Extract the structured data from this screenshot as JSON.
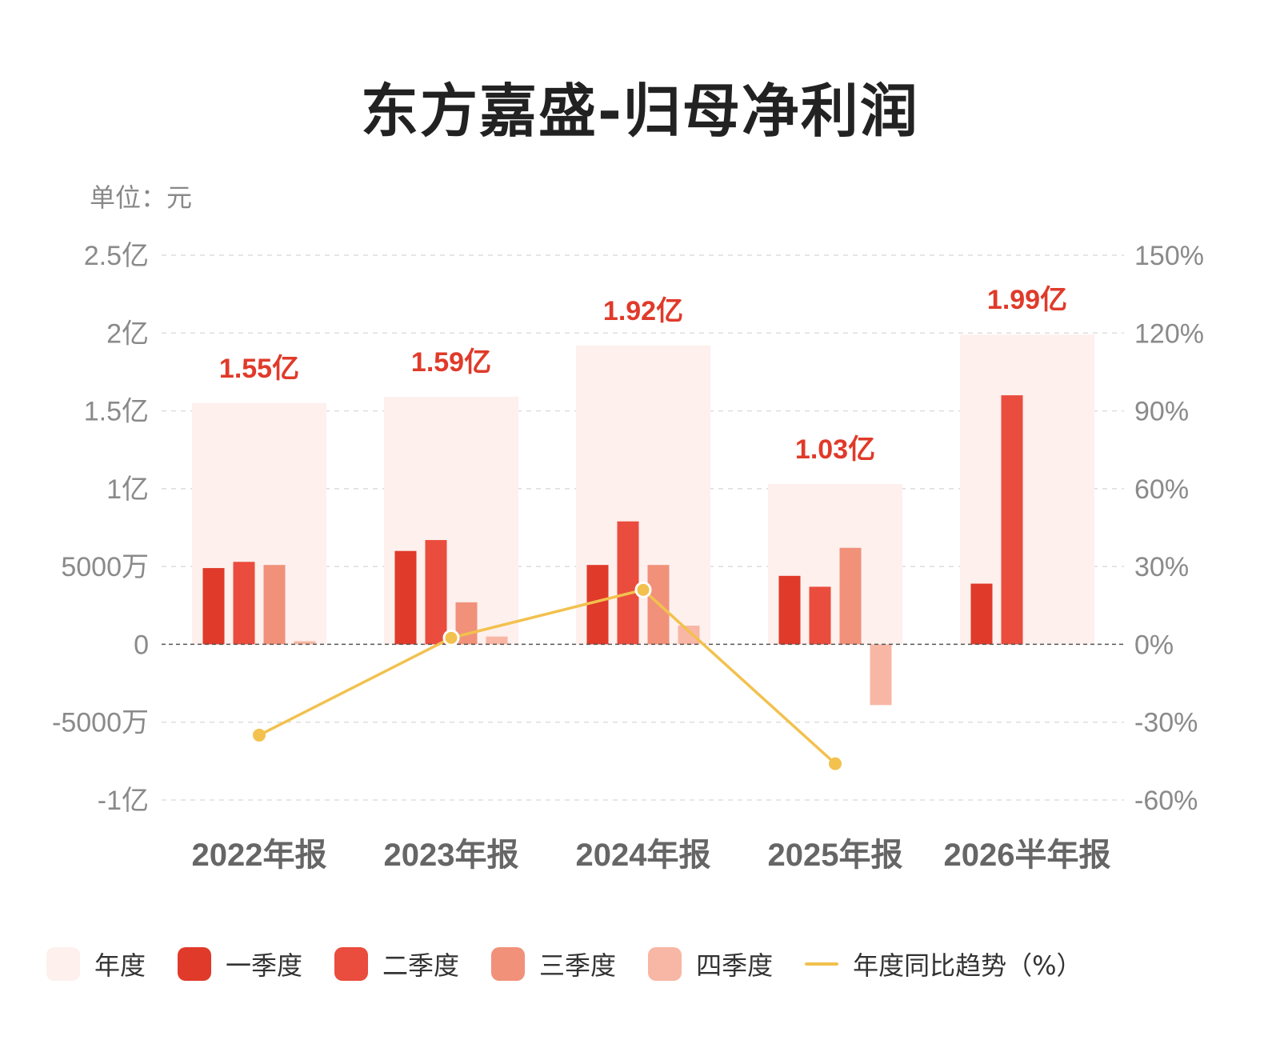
{
  "title": "东方嘉盛-归母净利润",
  "unit_label": "单位：元",
  "colors": {
    "annual": "#fdf0ed",
    "q1": "#e03a2a",
    "q2": "#ea4c3d",
    "q3": "#f1917a",
    "q4": "#f8b6a4",
    "trend": "#f2c14e",
    "total_label": "#e03a2a"
  },
  "legend": [
    {
      "key": "annual",
      "label": "年度",
      "kind": "box"
    },
    {
      "key": "q1",
      "label": "一季度",
      "kind": "box"
    },
    {
      "key": "q2",
      "label": "二季度",
      "kind": "box"
    },
    {
      "key": "q3",
      "label": "三季度",
      "kind": "box"
    },
    {
      "key": "q4",
      "label": "四季度",
      "kind": "box"
    },
    {
      "key": "trend",
      "label": "年度同比趋势（%）",
      "kind": "line"
    }
  ],
  "chart_data": {
    "type": "bar",
    "categories": [
      "2022年报",
      "2023年报",
      "2024年报",
      "2025年报",
      "2026半年报"
    ],
    "annual": [
      155000000,
      159000000,
      192000000,
      103000000,
      199000000
    ],
    "annual_labels": [
      "1.55亿",
      "1.59亿",
      "1.92亿",
      "1.03亿",
      "1.99亿"
    ],
    "series": [
      {
        "key": "q1",
        "name": "一季度",
        "values": [
          49000000,
          60000000,
          51000000,
          44000000,
          39000000
        ]
      },
      {
        "key": "q2",
        "name": "二季度",
        "values": [
          53000000,
          67000000,
          79000000,
          37000000,
          160000000
        ]
      },
      {
        "key": "q3",
        "name": "三季度",
        "values": [
          51000000,
          27000000,
          51000000,
          62000000,
          null
        ]
      },
      {
        "key": "q4",
        "name": "四季度",
        "values": [
          2000000,
          5000000,
          12000000,
          -39000000,
          null
        ]
      }
    ],
    "yoy": {
      "name": "年度同比趋势（%）",
      "values": [
        -35,
        2.5,
        21,
        -46,
        null
      ]
    },
    "y_left": {
      "min": -100000000,
      "max": 250000000,
      "ticks": [
        250000000,
        200000000,
        150000000,
        100000000,
        50000000,
        0,
        -50000000,
        -100000000
      ],
      "tick_labels": [
        "2.5亿",
        "2亿",
        "1.5亿",
        "1亿",
        "5000万",
        "0",
        "-5000万",
        "-1亿"
      ]
    },
    "y_right": {
      "min": -60,
      "max": 150,
      "tick_labels": [
        "150%",
        "120%",
        "90%",
        "60%",
        "30%",
        "0%",
        "-30%",
        "-60%"
      ]
    },
    "grid": true,
    "legend_position": "bottom"
  }
}
